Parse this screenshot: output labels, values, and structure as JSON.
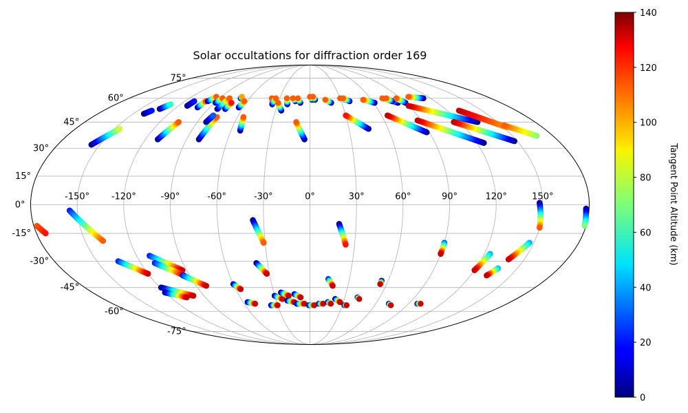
{
  "chart_data": {
    "type": "scatter",
    "projection": "mollweide",
    "title": "Solar occultations for diffraction order 169",
    "lon_ticks": [
      "-150°",
      "-120°",
      "-90°",
      "-60°",
      "-30°",
      "0°",
      "30°",
      "60°",
      "90°",
      "120°",
      "150°"
    ],
    "lon_tick_values": [
      -150,
      -120,
      -90,
      -60,
      -30,
      0,
      30,
      60,
      90,
      120,
      150
    ],
    "lat_ticks": [
      "75°",
      "60°",
      "45°",
      "30°",
      "15°",
      "0°",
      "-15°",
      "-30°",
      "-45°",
      "-60°",
      "-75°"
    ],
    "lat_tick_values": [
      75,
      60,
      45,
      30,
      15,
      0,
      -15,
      -30,
      -45,
      -60,
      -75
    ],
    "grid": true,
    "colormap": "jet",
    "colorbar": {
      "label": "Tangent Point Altitude (km)",
      "range": [
        0,
        140
      ],
      "ticks": [
        "0",
        "20",
        "40",
        "60",
        "80",
        "100",
        "120",
        "140"
      ],
      "tick_values": [
        0,
        20,
        40,
        60,
        80,
        100,
        120,
        140
      ],
      "position": "right"
    },
    "tracks": [
      {
        "start": [
          -156,
          32
        ],
        "end": [
          -146,
          41
        ],
        "alt": [
          0,
          80
        ]
      },
      {
        "start": [
          -141,
          50
        ],
        "end": [
          -138,
          52
        ],
        "alt": [
          0,
          20
        ]
      },
      {
        "start": [
          -133,
          53
        ],
        "end": [
          -129,
          56
        ],
        "alt": [
          0,
          60
        ]
      },
      {
        "start": [
          -112,
          55
        ],
        "end": [
          -111,
          58
        ],
        "alt": [
          0,
          20
        ]
      },
      {
        "start": [
          -111,
          35
        ],
        "end": [
          -105,
          45
        ],
        "alt": [
          0,
          110
        ]
      },
      {
        "start": [
          -101,
          54
        ],
        "end": [
          -100,
          58
        ],
        "alt": [
          0,
          110
        ]
      },
      {
        "start": [
          -98,
          58
        ],
        "end": [
          -95,
          61
        ],
        "alt": [
          0,
          110
        ]
      },
      {
        "start": [
          -89,
          57
        ],
        "end": [
          -87,
          60
        ],
        "alt": [
          0,
          110
        ]
      },
      {
        "start": [
          -82,
          53
        ],
        "end": [
          -80,
          60
        ],
        "alt": [
          0,
          110
        ]
      },
      {
        "start": [
          -81,
          35
        ],
        "end": [
          -77,
          48
        ],
        "alt": [
          0,
          110
        ]
      },
      {
        "start": [
          -83,
          45
        ],
        "end": [
          -81,
          49
        ],
        "alt": [
          0,
          30
        ]
      },
      {
        "start": [
          -75,
          53
        ],
        "end": [
          -74,
          57
        ],
        "alt": [
          0,
          120
        ]
      },
      {
        "start": [
          -69,
          60
        ],
        "end": [
          -69,
          61
        ],
        "alt": [
          0,
          100
        ]
      },
      {
        "start": [
          -64,
          54
        ],
        "end": [
          -63,
          58
        ],
        "alt": [
          0,
          110
        ]
      },
      {
        "start": [
          -53,
          40
        ],
        "end": [
          -55,
          48
        ],
        "alt": [
          0,
          110
        ]
      },
      {
        "start": [
          -36,
          58
        ],
        "end": [
          -38,
          60
        ],
        "alt": [
          0,
          110
        ]
      },
      {
        "start": [
          -35,
          56
        ],
        "end": [
          -34,
          60
        ],
        "alt": [
          0,
          110
        ]
      },
      {
        "start": [
          -25,
          52
        ],
        "end": [
          -30,
          57
        ],
        "alt": [
          0,
          110
        ]
      },
      {
        "start": [
          -21,
          56
        ],
        "end": [
          -23,
          60
        ],
        "alt": [
          0,
          110
        ]
      },
      {
        "start": [
          -14,
          58
        ],
        "end": [
          -17,
          60
        ],
        "alt": [
          0,
          110
        ]
      },
      {
        "start": [
          -9,
          57
        ],
        "end": [
          -12,
          60
        ],
        "alt": [
          0,
          110
        ]
      },
      {
        "start": [
          -4,
          35
        ],
        "end": [
          -11,
          45
        ],
        "alt": [
          0,
          110
        ]
      },
      {
        "start": [
          2,
          59
        ],
        "end": [
          0,
          61
        ],
        "alt": [
          0,
          110
        ]
      },
      {
        "start": [
          5,
          59
        ],
        "end": [
          3,
          61
        ],
        "alt": [
          0,
          110
        ]
      },
      {
        "start": [
          20,
          57
        ],
        "end": [
          15,
          59
        ],
        "alt": [
          0,
          110
        ]
      },
      {
        "start": [
          35,
          59
        ],
        "end": [
          30,
          60
        ],
        "alt": [
          0,
          110
        ]
      },
      {
        "start": [
          45,
          41
        ],
        "end": [
          30,
          49
        ],
        "alt": [
          0,
          120
        ]
      },
      {
        "start": [
          38,
          58
        ],
        "end": [
          33,
          60
        ],
        "alt": [
          0,
          110
        ]
      },
      {
        "start": [
          61,
          57
        ],
        "end": [
          52,
          59
        ],
        "alt": [
          0,
          110
        ]
      },
      {
        "start": [
          83,
          57
        ],
        "end": [
          72,
          60
        ],
        "alt": [
          0,
          110
        ]
      },
      {
        "start": [
          88,
          39
        ],
        "end": [
          65,
          49
        ],
        "alt": [
          0,
          130
        ]
      },
      {
        "start": [
          79,
          58
        ],
        "end": [
          76,
          60
        ],
        "alt": [
          0,
          110
        ]
      },
      {
        "start": [
          90,
          57
        ],
        "end": [
          86,
          60
        ],
        "alt": [
          0,
          110
        ]
      },
      {
        "start": [
          125,
          33
        ],
        "end": [
          87,
          46
        ],
        "alt": [
          0,
          130
        ]
      },
      {
        "start": [
          134,
          45
        ],
        "end": [
          90,
          55
        ],
        "alt": [
          0,
          130
        ]
      },
      {
        "start": [
          113,
          60
        ],
        "end": [
          100,
          61
        ],
        "alt": [
          0,
          110
        ]
      },
      {
        "start": [
          148,
          34
        ],
        "end": [
          115,
          45
        ],
        "alt": [
          0,
          130
        ]
      },
      {
        "start": [
          152,
          42
        ],
        "end": [
          130,
          52
        ],
        "alt": [
          100,
          130
        ]
      },
      {
        "start": [
          168,
          37
        ],
        "end": [
          152,
          43
        ],
        "alt": [
          70,
          110
        ]
      },
      {
        "start": [
          -178,
          -11
        ],
        "end": [
          -174,
          -15
        ],
        "alt": [
          110,
          120
        ]
      },
      {
        "start": [
          -155,
          -3
        ],
        "end": [
          -138,
          -19
        ],
        "alt": [
          20,
          110
        ]
      },
      {
        "start": [
          -135,
          -30
        ],
        "end": [
          -120,
          -37
        ],
        "alt": [
          20,
          130
        ]
      },
      {
        "start": [
          -111,
          -27
        ],
        "end": [
          -93,
          -35
        ],
        "alt": [
          20,
          130
        ]
      },
      {
        "start": [
          -110,
          -31
        ],
        "end": [
          -94,
          -38
        ],
        "alt": [
          20,
          130
        ]
      },
      {
        "start": [
          -95,
          -38
        ],
        "end": [
          -82,
          -44
        ],
        "alt": [
          20,
          130
        ]
      },
      {
        "start": [
          -60,
          -43
        ],
        "end": [
          -56,
          -46
        ],
        "alt": [
          0,
          130
        ]
      },
      {
        "start": [
          -56,
          -54
        ],
        "end": [
          -50,
          -55
        ],
        "alt": [
          0,
          130
        ]
      },
      {
        "start": [
          -119,
          -45
        ],
        "end": [
          -99,
          -50
        ],
        "alt": [
          0,
          130
        ]
      },
      {
        "start": [
          -120,
          -48
        ],
        "end": [
          -106,
          -51
        ],
        "alt": [
          0,
          130
        ]
      },
      {
        "start": [
          -37,
          -8
        ],
        "end": [
          -31,
          -20
        ],
        "alt": [
          0,
          110
        ]
      },
      {
        "start": [
          -38,
          -31
        ],
        "end": [
          -32,
          -37
        ],
        "alt": [
          0,
          130
        ]
      },
      {
        "start": [
          -36,
          -56
        ],
        "end": [
          -30,
          -56
        ],
        "alt": [
          0,
          130
        ]
      },
      {
        "start": [
          -30,
          -50
        ],
        "end": [
          -24,
          -52
        ],
        "alt": [
          0,
          130
        ]
      },
      {
        "start": [
          -24,
          -48
        ],
        "end": [
          -18,
          -50
        ],
        "alt": [
          0,
          130
        ]
      },
      {
        "start": [
          -20,
          -53
        ],
        "end": [
          -14,
          -54
        ],
        "alt": [
          0,
          130
        ]
      },
      {
        "start": [
          -13,
          -49
        ],
        "end": [
          -8,
          -51
        ],
        "alt": [
          0,
          130
        ]
      },
      {
        "start": [
          -12,
          -55
        ],
        "end": [
          -5,
          -55
        ],
        "alt": [
          0,
          130
        ]
      },
      {
        "start": [
          -1,
          -56
        ],
        "end": [
          4,
          -56
        ],
        "alt": [
          0,
          130
        ]
      },
      {
        "start": [
          8,
          -55
        ],
        "end": [
          12,
          -55
        ],
        "alt": [
          0,
          130
        ]
      },
      {
        "start": [
          14,
          -40
        ],
        "end": [
          18,
          -44
        ],
        "alt": [
          20,
          130
        ]
      },
      {
        "start": [
          19,
          -10
        ],
        "end": [
          24,
          -21
        ],
        "alt": [
          0,
          120
        ]
      },
      {
        "start": [
          16,
          -54
        ],
        "end": [
          19,
          -55
        ],
        "alt": [
          0,
          130
        ]
      },
      {
        "start": [
          22,
          -52
        ],
        "end": [
          27,
          -54
        ],
        "alt": [
          0,
          130
        ]
      },
      {
        "start": [
          32,
          -56
        ],
        "end": [
          34,
          -56
        ],
        "alt": [
          0,
          130
        ]
      },
      {
        "start": [
          41,
          -51
        ],
        "end": [
          43,
          -52
        ],
        "alt": [
          0,
          130
        ]
      },
      {
        "start": [
          55,
          -41
        ],
        "end": [
          55,
          -43
        ],
        "alt": [
          0,
          130
        ]
      },
      {
        "start": [
          72,
          -55
        ],
        "end": [
          75,
          -56
        ],
        "alt": [
          0,
          130
        ]
      },
      {
        "start": [
          90,
          -20
        ],
        "end": [
          90,
          -26
        ],
        "alt": [
          30,
          130
        ]
      },
      {
        "start": [
          98,
          -55
        ],
        "end": [
          101,
          -55
        ],
        "alt": [
          0,
          130
        ]
      },
      {
        "start": [
          124,
          -26
        ],
        "end": [
          120,
          -35
        ],
        "alt": [
          40,
          130
        ]
      },
      {
        "start": [
          136,
          -34
        ],
        "end": [
          132,
          -38
        ],
        "alt": [
          40,
          130
        ]
      },
      {
        "start": [
          147,
          -20
        ],
        "end": [
          139,
          -29
        ],
        "alt": [
          40,
          130
        ]
      },
      {
        "start": [
          148,
          1
        ],
        "end": [
          150,
          -12
        ],
        "alt": [
          0,
          110
        ]
      },
      {
        "start": [
          178,
          -2
        ],
        "end": [
          179,
          -11
        ],
        "alt": [
          0,
          70
        ]
      }
    ]
  }
}
